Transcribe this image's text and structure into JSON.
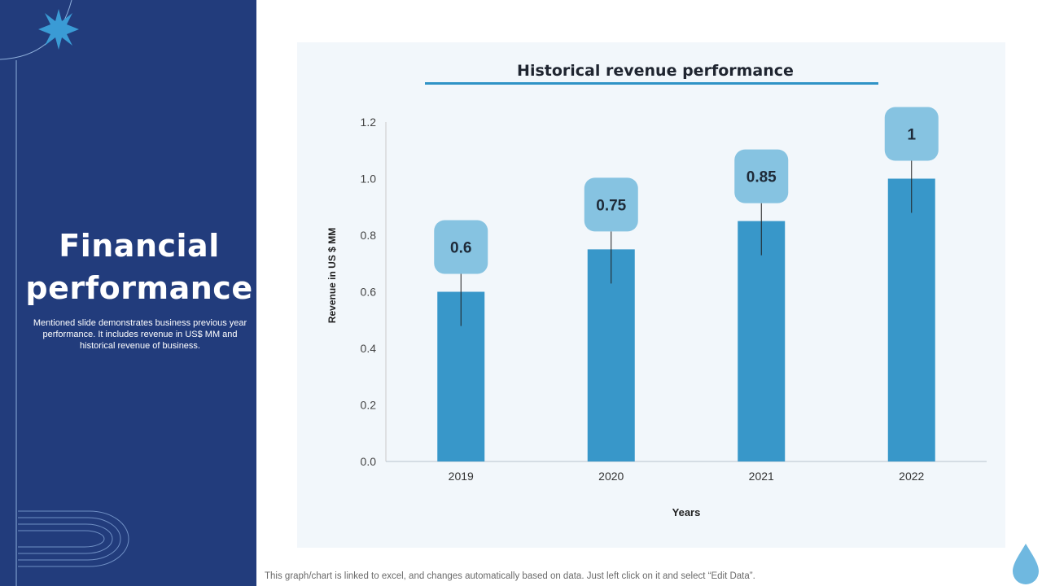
{
  "slide": {
    "title": "Financial performance",
    "description": "Mentioned slide demonstrates business previous year performance. It includes revenue in US$ MM and historical revenue of business.",
    "footer_note": "This graph/chart is linked to excel,  and changes automatically based on data. Just left click on it and select “Edit Data”."
  },
  "colors": {
    "sidebar": "#223c7c",
    "bar": "#3897c9",
    "callout": "#86c3e1",
    "accent": "#2f93c6"
  },
  "chart_data": {
    "type": "bar",
    "title": "Historical revenue performance",
    "xlabel": "Years",
    "ylabel": "Revenue in US $ MM",
    "categories": [
      "2019",
      "2020",
      "2021",
      "2022"
    ],
    "values": [
      0.6,
      0.75,
      0.85,
      1
    ],
    "value_labels": [
      "0.6",
      "0.75",
      "0.85",
      "1"
    ],
    "ylim": [
      0,
      1.2
    ],
    "yticks": [
      "0.0",
      "0.2",
      "0.4",
      "0.6",
      "0.8",
      "1.0",
      "1.2"
    ],
    "grid": false,
    "legend": "none"
  }
}
